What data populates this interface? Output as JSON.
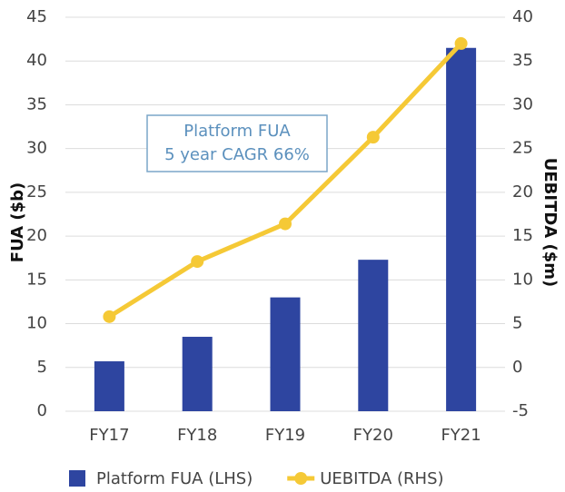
{
  "chart_data": {
    "type": "bar",
    "categories": [
      "FY17",
      "FY18",
      "FY19",
      "FY20",
      "FY21"
    ],
    "series": [
      {
        "name": "Platform FUA (LHS)",
        "type": "bar",
        "color": "#2e45a0",
        "axis": "y",
        "values": [
          5.7,
          8.5,
          13,
          17.3,
          41.5
        ]
      },
      {
        "name": "UEBITDA (RHS)",
        "type": "line",
        "color": "#f5c936",
        "axis": "y2",
        "values": [
          5.8,
          12.1,
          16.4,
          26.3,
          37
        ]
      }
    ],
    "ylabel": "FUA ($b)",
    "y2label": "UEBITDA ($m)",
    "ylim": [
      0,
      45
    ],
    "yticks": [
      0,
      5,
      10,
      15,
      20,
      25,
      30,
      35,
      40,
      45
    ],
    "y2lim": [
      -5,
      40
    ],
    "y2ticks": [
      -5,
      0,
      5,
      10,
      15,
      20,
      25,
      30,
      35,
      40
    ],
    "annotation": [
      "Platform FUA",
      "5 year CAGR 66%"
    ],
    "grid": true,
    "legend": "bottom"
  }
}
